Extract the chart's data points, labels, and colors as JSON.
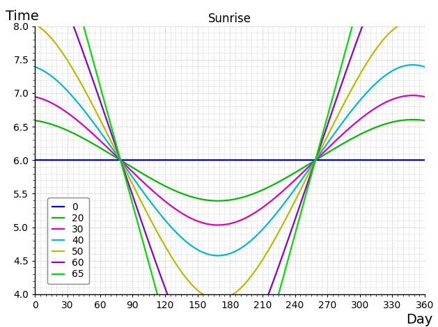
{
  "title": "Sunrise",
  "ylabel": "Time",
  "xlabel": "Day",
  "xlim": [
    0,
    360
  ],
  "ylim": [
    4,
    8
  ],
  "xticks": [
    0,
    30,
    60,
    90,
    120,
    150,
    180,
    210,
    240,
    270,
    300,
    330,
    360
  ],
  "yticks": [
    4,
    4.5,
    5,
    5.5,
    6,
    6.5,
    7,
    7.5,
    8
  ],
  "latitudes": [
    0,
    20,
    30,
    40,
    50,
    60,
    65
  ],
  "colors": {
    "0": "#0000cc",
    "20": "#00bb00",
    "30": "#dd00bb",
    "40": "#00bbcc",
    "50": "#bbbb00",
    "60": "#8800cc",
    "65": "#00dd00"
  },
  "background_color": "#ffffff",
  "grid_color": "#aaaaaa",
  "title_fontsize": 12,
  "label_fontsize": 14,
  "tick_fontsize": 10,
  "legend_fontsize": 10,
  "linewidth": 1.6
}
